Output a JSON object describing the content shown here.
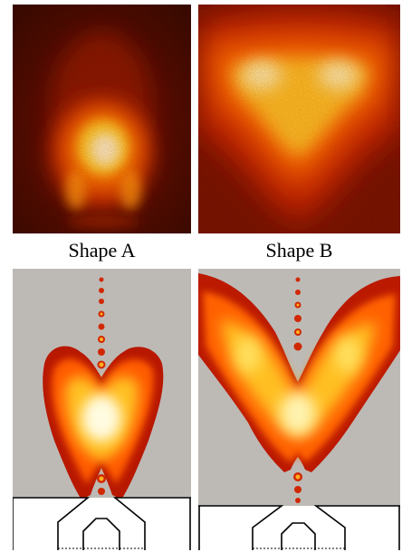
{
  "labels": {
    "shape_a": "Shape A",
    "shape_b": "Shape B"
  },
  "colors": {
    "background_dark": "#2a0400",
    "hot_core": "#fffbe0",
    "hot_yellow": "#ffe040",
    "hot_orange": "#ff7a00",
    "hot_red": "#c81400",
    "gray_panel": "#bdbab6",
    "outline": "#000000"
  }
}
